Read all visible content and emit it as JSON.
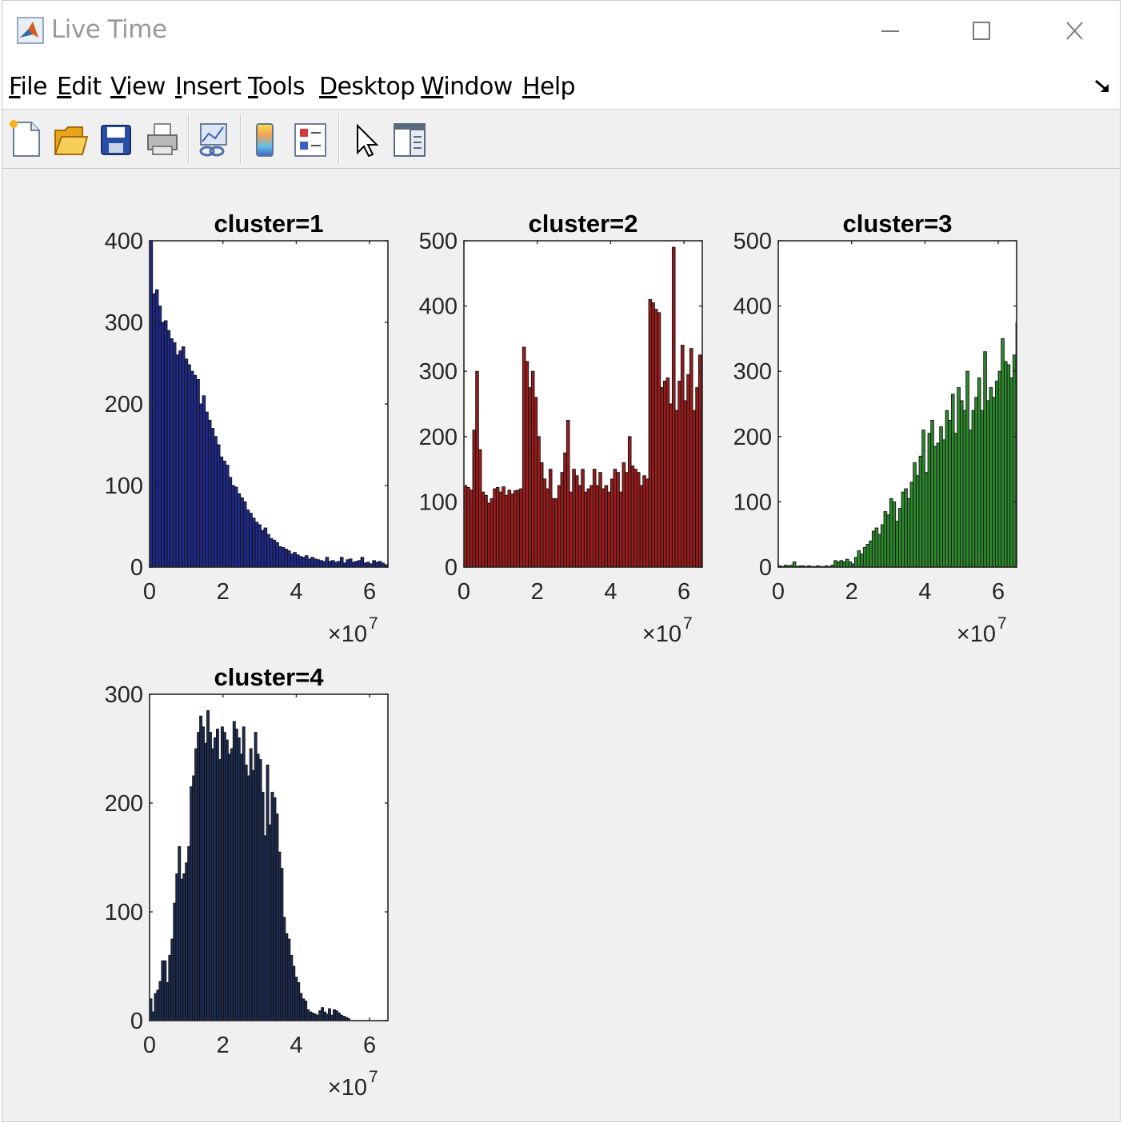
{
  "window": {
    "title": "Live Time"
  },
  "menu": [
    {
      "first": "F",
      "rest": "ile"
    },
    {
      "first": "E",
      "rest": "dit"
    },
    {
      "first": "V",
      "rest": "iew"
    },
    {
      "first": "I",
      "rest": "nsert"
    },
    {
      "first": "T",
      "rest": "ools"
    },
    {
      "first": "D",
      "rest": "esktop"
    },
    {
      "first": "W",
      "rest": "indow"
    },
    {
      "first": "H",
      "rest": "elp"
    }
  ],
  "toolbar": [
    {
      "icon": "new-figure-icon"
    },
    {
      "icon": "open-file-icon"
    },
    {
      "icon": "save-icon"
    },
    {
      "icon": "print-icon"
    },
    {
      "icon": "link-plot-icon"
    },
    {
      "icon": "insert-colorbar-icon"
    },
    {
      "icon": "insert-legend-icon"
    },
    {
      "icon": "edit-plot-icon"
    },
    {
      "icon": "property-inspector-icon"
    }
  ],
  "chart_data": [
    {
      "type": "bar",
      "title": "cluster=1",
      "color": "#1f2a8c",
      "xlim": [
        0,
        6.5
      ],
      "ylim": [
        0,
        400
      ],
      "xticks": [
        "0",
        "2",
        "4",
        "6"
      ],
      "yticks": [
        "0",
        "100",
        "200",
        "300",
        "400"
      ],
      "x_exponent": "×10^7",
      "bin_width": 0.08,
      "values": [
        400,
        335,
        340,
        320,
        300,
        302,
        290,
        280,
        275,
        260,
        265,
        270,
        255,
        248,
        240,
        235,
        230,
        200,
        210,
        190,
        180,
        170,
        160,
        150,
        135,
        130,
        125,
        110,
        100,
        98,
        90,
        85,
        80,
        70,
        66,
        60,
        55,
        52,
        45,
        48,
        40,
        35,
        33,
        30,
        25,
        24,
        22,
        20,
        16,
        18,
        15,
        13,
        12,
        14,
        10,
        12,
        10,
        9,
        8,
        7,
        12,
        7,
        8,
        6,
        7,
        12,
        5,
        9,
        10,
        6,
        7,
        8,
        12,
        5,
        6,
        4,
        8,
        6,
        7,
        5,
        3,
        3,
        5,
        2,
        3,
        1,
        1,
        1,
        1,
        0,
        0,
        0,
        0,
        0,
        0,
        0,
        0,
        0,
        0,
        0,
        0
      ]
    },
    {
      "type": "bar",
      "title": "cluster=2",
      "color": "#9c1c1c",
      "xlim": [
        0,
        6.5
      ],
      "ylim": [
        0,
        500
      ],
      "xticks": [
        "0",
        "2",
        "4",
        "6"
      ],
      "yticks": [
        "0",
        "100",
        "200",
        "300",
        "400",
        "500"
      ],
      "x_exponent": "×10^7",
      "bin_width": 0.08,
      "values": [
        125,
        122,
        118,
        210,
        300,
        180,
        115,
        110,
        98,
        105,
        120,
        122,
        115,
        123,
        110,
        118,
        112,
        117,
        118,
        120,
        337,
        315,
        275,
        300,
        260,
        200,
        160,
        135,
        120,
        150,
        105,
        105,
        125,
        145,
        175,
        225,
        115,
        150,
        140,
        125,
        150,
        115,
        120,
        125,
        150,
        125,
        145,
        120,
        125,
        115,
        135,
        150,
        145,
        115,
        160,
        145,
        200,
        155,
        150,
        145,
        125,
        140,
        135,
        410,
        405,
        395,
        390,
        275,
        285,
        290,
        250,
        490,
        240,
        285,
        340,
        255,
        295,
        335,
        240,
        275,
        325,
        240,
        330,
        260,
        300,
        325,
        250,
        310,
        275,
        350,
        330,
        210,
        295,
        290,
        275,
        300,
        280,
        295,
        285,
        290
      ]
    },
    {
      "type": "bar",
      "title": "cluster=3",
      "color": "#2e8b2e",
      "xlim": [
        0,
        6.5
      ],
      "ylim": [
        0,
        500
      ],
      "xticks": [
        "0",
        "2",
        "4",
        "6"
      ],
      "yticks": [
        "0",
        "100",
        "200",
        "300",
        "400",
        "500"
      ],
      "x_exponent": "×10^7",
      "bin_width": 0.08,
      "values": [
        2,
        1,
        3,
        2,
        3,
        8,
        1,
        2,
        2,
        1,
        2,
        1,
        1,
        2,
        1,
        1,
        2,
        1,
        3,
        10,
        8,
        10,
        8,
        12,
        8,
        5,
        15,
        25,
        20,
        30,
        35,
        40,
        55,
        60,
        50,
        65,
        85,
        80,
        105,
        100,
        70,
        90,
        115,
        120,
        105,
        130,
        160,
        140,
        170,
        210,
        145,
        205,
        225,
        185,
        190,
        215,
        195,
        240,
        225,
        265,
        205,
        275,
        255,
        240,
        300,
        210,
        240,
        260,
        290,
        240,
        330,
        255,
        275,
        260,
        285,
        300,
        350,
        315,
        310,
        290,
        325,
        375,
        320,
        340,
        365,
        385,
        395,
        390,
        400,
        370,
        380,
        390,
        375,
        400,
        370,
        350,
        385,
        395,
        390,
        380
      ]
    },
    {
      "type": "bar",
      "title": "cluster=4",
      "color": "#1e2d54",
      "xlim": [
        0,
        6.5
      ],
      "ylim": [
        0,
        300
      ],
      "xticks": [
        "0",
        "2",
        "4",
        "6"
      ],
      "yticks": [
        "0",
        "100",
        "200",
        "300"
      ],
      "x_exponent": "×10^7",
      "bin_width": 0.065,
      "values": [
        20,
        8,
        25,
        28,
        36,
        55,
        55,
        35,
        60,
        75,
        108,
        135,
        160,
        130,
        135,
        145,
        160,
        215,
        225,
        250,
        265,
        280,
        270,
        255,
        285,
        265,
        250,
        260,
        268,
        240,
        270,
        265,
        258,
        245,
        250,
        275,
        268,
        260,
        245,
        270,
        235,
        225,
        250,
        230,
        265,
        245,
        240,
        210,
        170,
        235,
        180,
        210,
        205,
        190,
        155,
        140,
        95,
        80,
        75,
        60,
        50,
        40,
        35,
        25,
        20,
        18,
        10,
        8,
        7,
        6,
        5,
        9,
        12,
        8,
        6,
        11,
        5,
        10,
        9,
        7,
        5,
        4,
        3,
        2
      ]
    }
  ]
}
